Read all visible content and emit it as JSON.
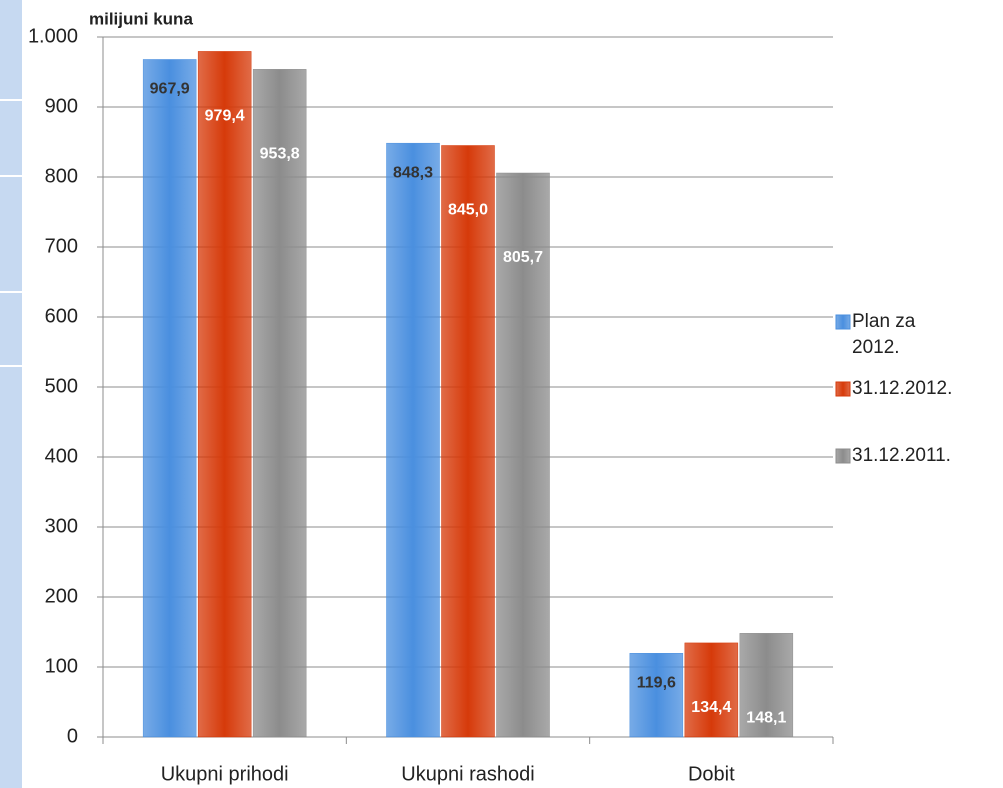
{
  "chart_data": {
    "type": "bar",
    "axis_title": "milijuni kuna",
    "categories": [
      "Ukupni prihodi",
      "Ukupni rashodi",
      "Dobit"
    ],
    "series": [
      {
        "name": "Plan za 2012.",
        "color": "#4a8fdf",
        "values": [
          967.9,
          848.3,
          119.6
        ],
        "value_labels": [
          "967,9",
          "848,3",
          "119,6"
        ]
      },
      {
        "name": "31.12.2012.",
        "color": "#d63a0a",
        "values": [
          979.4,
          845.0,
          134.4
        ],
        "value_labels": [
          "979,4",
          "845,0",
          "134,4"
        ]
      },
      {
        "name": "31.12.2011.",
        "color": "#8c8c8c",
        "values": [
          953.8,
          805.7,
          148.1
        ],
        "value_labels": [
          "953,8",
          "805,7",
          "148,1"
        ]
      }
    ],
    "ylim": [
      0,
      1000
    ],
    "yticks": [
      0,
      100,
      200,
      300,
      400,
      500,
      600,
      700,
      800,
      900,
      {
        "value": 1000,
        "label": "1.000"
      }
    ],
    "grid": true,
    "legend": "right"
  }
}
